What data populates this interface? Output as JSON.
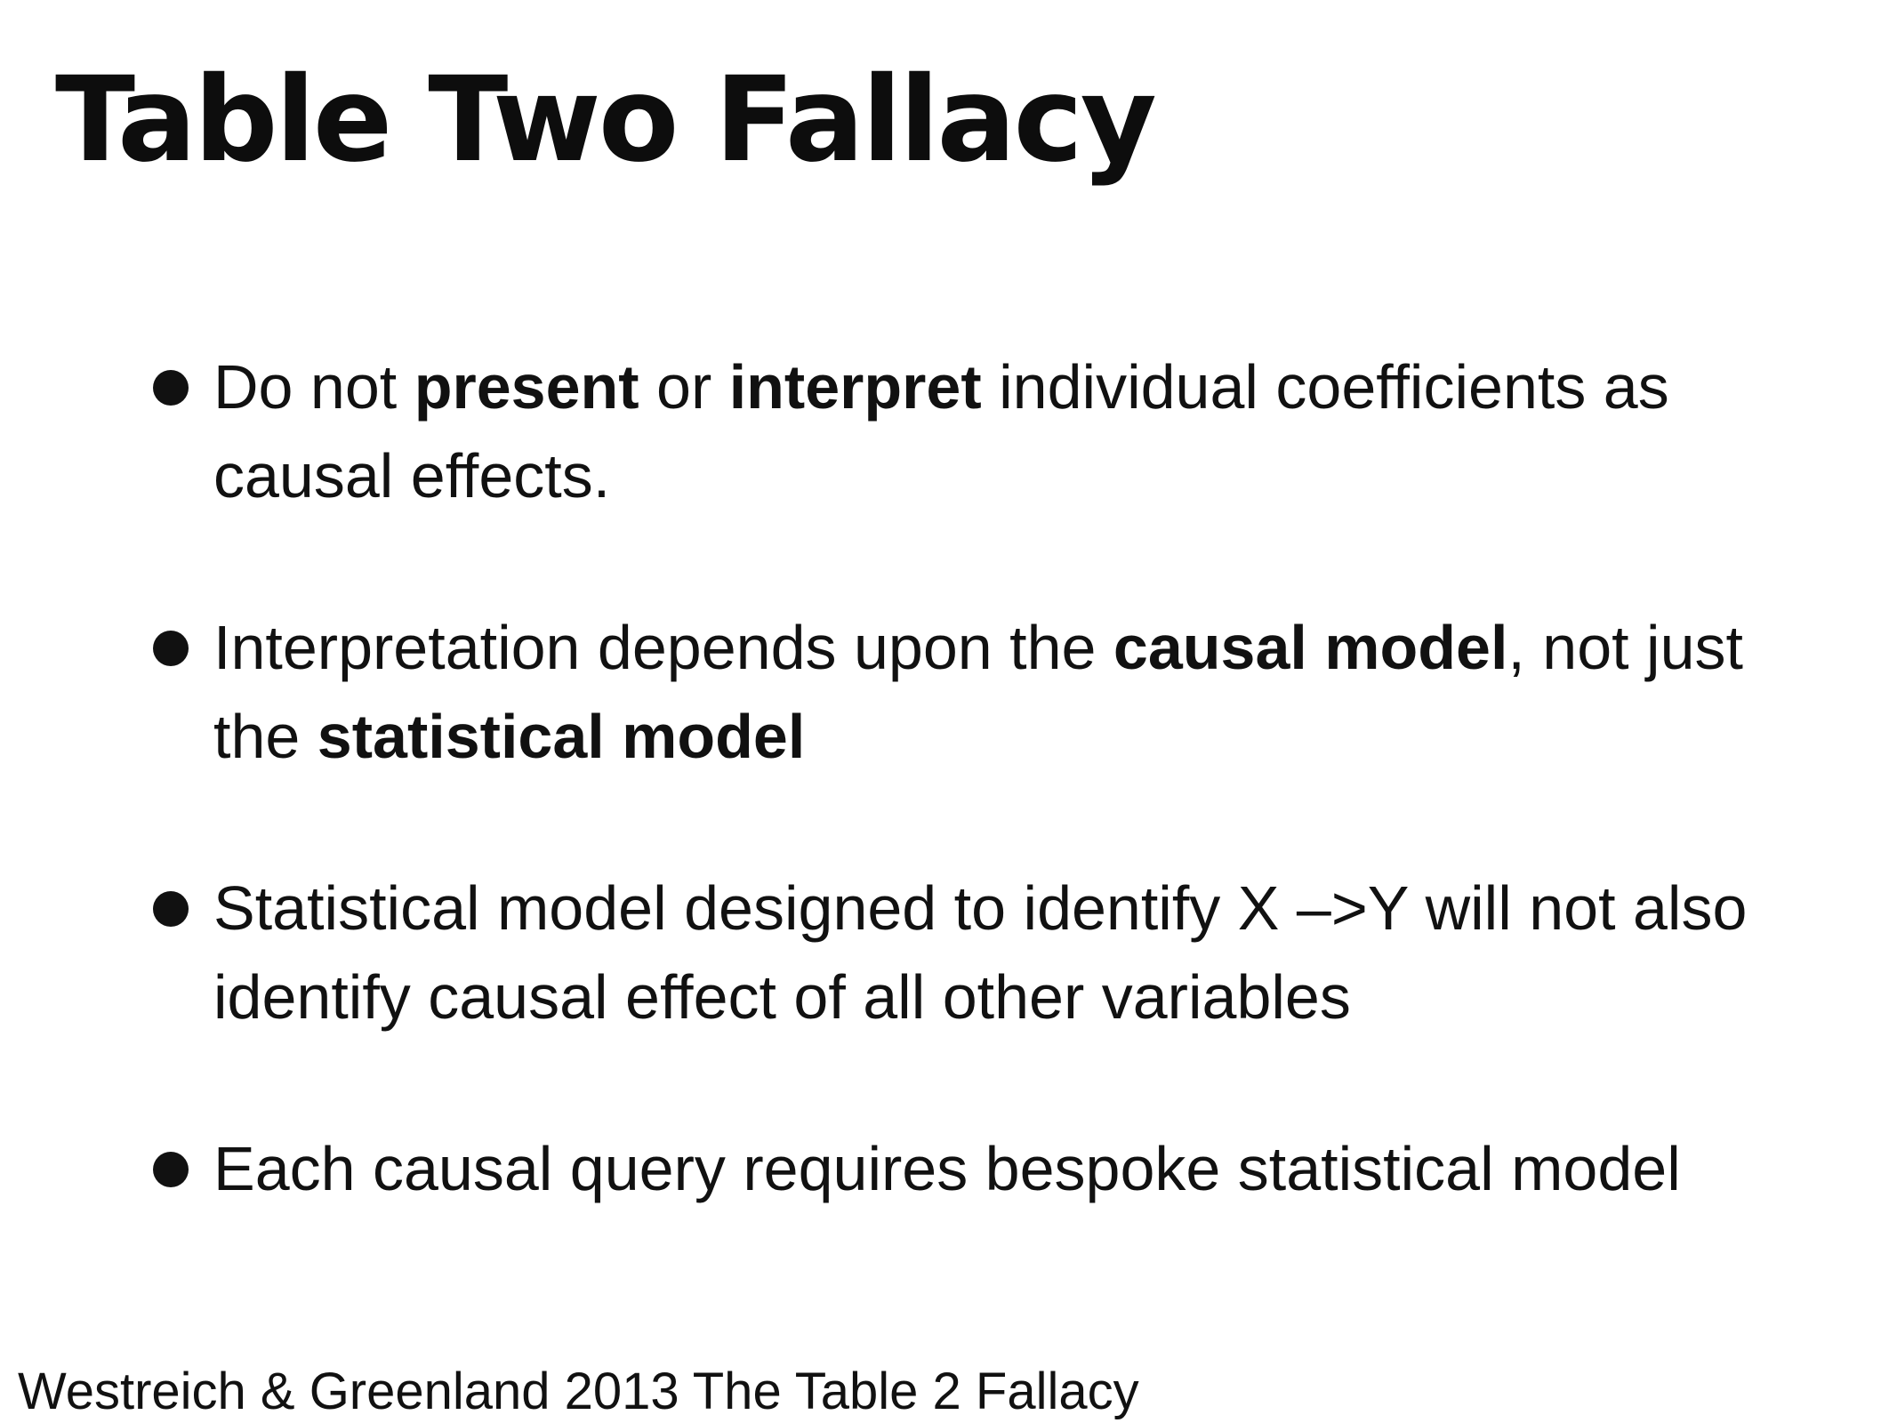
{
  "title": "Table Two Fallacy",
  "bullets": [
    {
      "t1": "Do not ",
      "b1": "present",
      "t2": " or ",
      "b2": "interpret",
      "t3": " individual coefficients as causal effects."
    },
    {
      "t1": "Interpretation depends upon the ",
      "b1": "causal model",
      "t2": ", not just the ",
      "b2": "statistical model"
    },
    {
      "t1": "Statistical model designed to identify X –>Y will not also identify causal effect of all other variables"
    },
    {
      "t1": "Each causal query requires bespoke statistical model"
    }
  ],
  "citation": "Westreich & Greenland 2013 The Table 2 Fallacy"
}
